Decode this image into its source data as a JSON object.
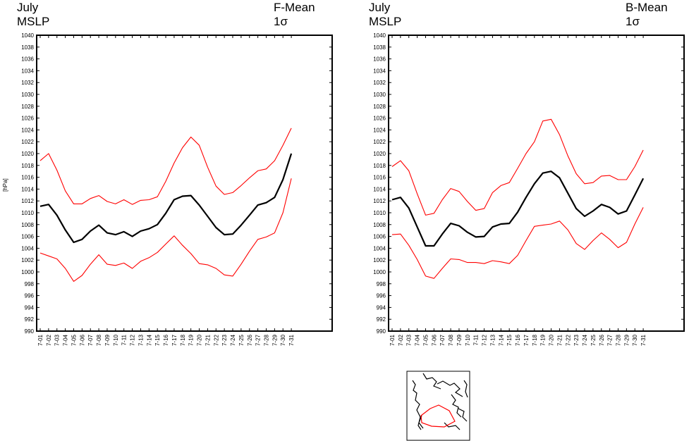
{
  "chart_data": [
    {
      "type": "line",
      "title_left": [
        "July",
        "MSLP"
      ],
      "title_right": [
        "F-Mean",
        "1σ"
      ],
      "ylabel": "[hPa]",
      "xlabel": "",
      "ylim": [
        990,
        1040
      ],
      "ytick_step": 2,
      "x": [
        "7-01",
        "7-02",
        "7-03",
        "7-04",
        "7-05",
        "7-06",
        "7-07",
        "7-08",
        "7-09",
        "7-10",
        "7-11",
        "7-12",
        "7-13",
        "7-14",
        "7-15",
        "7-16",
        "7-17",
        "7-18",
        "7-19",
        "7-20",
        "7-21",
        "7-22",
        "7-23",
        "7-24",
        "7-25",
        "7-26",
        "7-27",
        "7-28",
        "7-29",
        "7-30",
        "7-31"
      ],
      "series": [
        {
          "name": "mean+1σ",
          "color": "#ff0000",
          "values": [
            1018.8,
            1020.0,
            1017.2,
            1013.7,
            1011.5,
            1011.5,
            1012.4,
            1012.9,
            1011.9,
            1011.5,
            1012.2,
            1011.4,
            1012.1,
            1012.2,
            1012.7,
            1015.3,
            1018.4,
            1021.0,
            1022.8,
            1021.4,
            1017.7,
            1014.5,
            1013.1,
            1013.4,
            1014.6,
            1015.9,
            1017.1,
            1017.4,
            1018.8,
            1021.4,
            1024.3
          ]
        },
        {
          "name": "mean",
          "color": "#000000",
          "values": [
            1011.1,
            1011.4,
            1009.6,
            1007.1,
            1005.0,
            1005.5,
            1006.9,
            1007.9,
            1006.6,
            1006.3,
            1006.8,
            1006.0,
            1006.9,
            1007.3,
            1008.0,
            1009.9,
            1012.2,
            1012.8,
            1012.9,
            1011.3,
            1009.4,
            1007.5,
            1006.3,
            1006.4,
            1007.9,
            1009.6,
            1011.3,
            1011.7,
            1012.6,
            1015.6,
            1020.0
          ]
        },
        {
          "name": "mean-1σ",
          "color": "#ff0000",
          "values": [
            1003.2,
            1002.7,
            1002.2,
            1000.6,
            998.4,
            999.4,
            1001.3,
            1002.9,
            1001.3,
            1001.1,
            1001.5,
            1000.6,
            1001.8,
            1002.4,
            1003.3,
            1004.7,
            1006.1,
            1004.5,
            1003.1,
            1001.4,
            1001.2,
            1000.6,
            999.5,
            999.3,
            1001.3,
            1003.5,
            1005.5,
            1005.9,
            1006.6,
            1010.0,
            1015.8
          ]
        }
      ]
    },
    {
      "type": "line",
      "title_left": [
        "July",
        "MSLP"
      ],
      "title_right": [
        "B-Mean",
        "1σ"
      ],
      "ylabel": "",
      "xlabel": "",
      "ylim": [
        990,
        1040
      ],
      "ytick_step": 2,
      "x": [
        "7-01",
        "7-02",
        "7-03",
        "7-04",
        "7-05",
        "7-06",
        "7-07",
        "7-08",
        "7-09",
        "7-10",
        "7-11",
        "7-12",
        "7-13",
        "7-14",
        "7-15",
        "7-16",
        "7-17",
        "7-18",
        "7-19",
        "7-20",
        "7-21",
        "7-22",
        "7-23",
        "7-24",
        "7-25",
        "7-26",
        "7-27",
        "7-28",
        "7-29",
        "7-30",
        "7-31"
      ],
      "series": [
        {
          "name": "mean+1σ",
          "color": "#ff0000",
          "values": [
            1017.8,
            1018.8,
            1017.1,
            1013.2,
            1009.6,
            1009.9,
            1012.2,
            1014.1,
            1013.6,
            1011.9,
            1010.4,
            1010.7,
            1013.4,
            1014.6,
            1015.1,
            1017.5,
            1020.0,
            1022.0,
            1025.5,
            1025.8,
            1023.2,
            1019.6,
            1016.6,
            1014.9,
            1015.1,
            1016.2,
            1016.3,
            1015.6,
            1015.6,
            1017.8,
            1020.6
          ]
        },
        {
          "name": "mean",
          "color": "#000000",
          "values": [
            1012.2,
            1012.6,
            1010.8,
            1007.6,
            1004.4,
            1004.4,
            1006.4,
            1008.2,
            1007.8,
            1006.7,
            1005.9,
            1006.0,
            1007.6,
            1008.1,
            1008.2,
            1010.1,
            1012.6,
            1014.9,
            1016.7,
            1017.0,
            1015.9,
            1013.3,
            1010.7,
            1009.4,
            1010.3,
            1011.4,
            1010.9,
            1009.8,
            1010.3,
            1013.0,
            1015.8
          ]
        },
        {
          "name": "mean-1σ",
          "color": "#ff0000",
          "values": [
            1006.3,
            1006.4,
            1004.5,
            1002.1,
            999.3,
            998.9,
            1000.6,
            1002.2,
            1002.1,
            1001.6,
            1001.6,
            1001.4,
            1001.9,
            1001.7,
            1001.4,
            1002.8,
            1005.3,
            1007.7,
            1007.9,
            1008.1,
            1008.6,
            1007.1,
            1004.8,
            1003.8,
            1005.3,
            1006.6,
            1005.5,
            1004.1,
            1005.0,
            1008.1,
            1010.9
          ]
        }
      ]
    }
  ]
}
